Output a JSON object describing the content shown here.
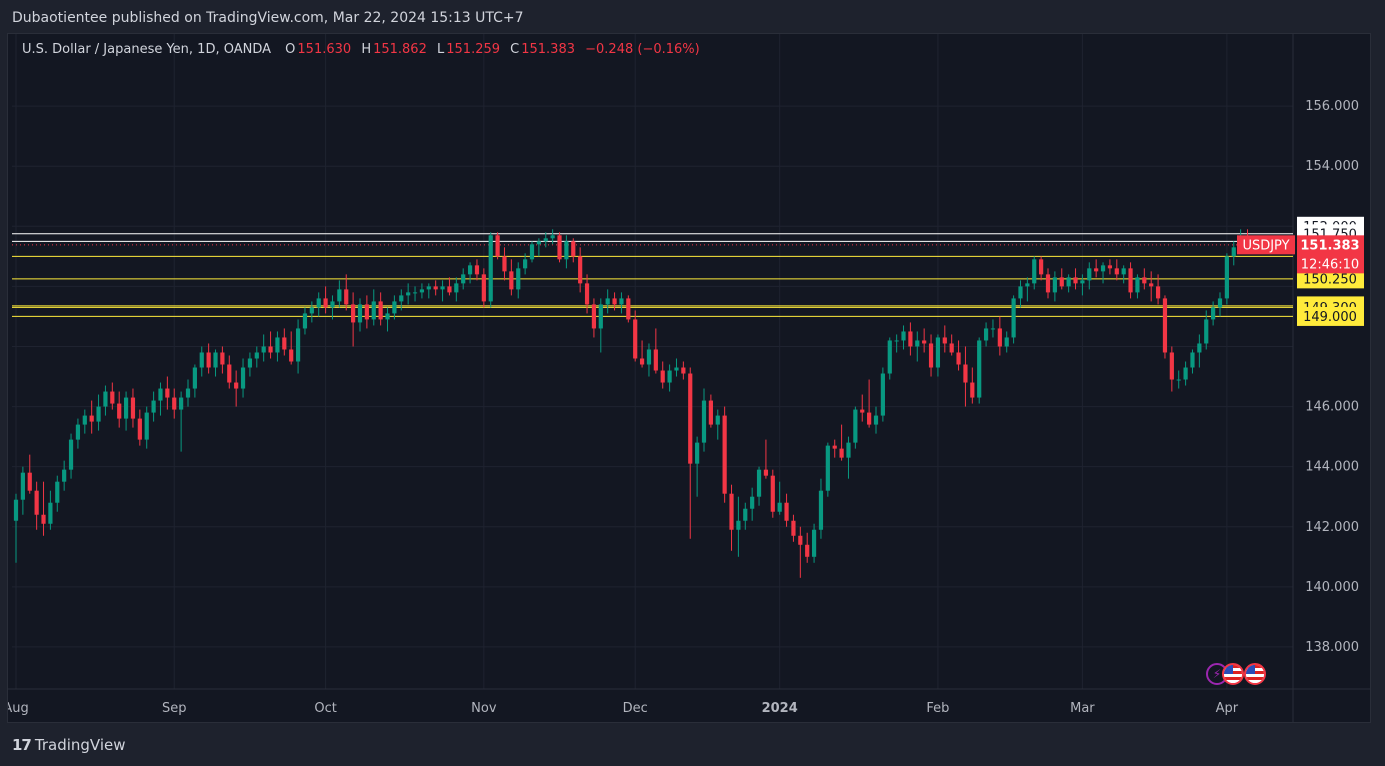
{
  "header": {
    "published_text": "Dubaotientee published on TradingView.com, Mar 22, 2024 15:13 UTC+7"
  },
  "legend": {
    "symbol_name": "U.S. Dollar / Japanese Yen, 1D, OANDA",
    "open_label": "O",
    "open_value": "151.630",
    "high_label": "H",
    "high_value": "151.862",
    "low_label": "L",
    "low_value": "151.259",
    "close_label": "C",
    "close_value": "151.383",
    "change_text": "−0.248 (−0.16%)"
  },
  "footer": {
    "brand": "TradingView"
  },
  "colors": {
    "background": "#131722",
    "up": "#089981",
    "down": "#f23645",
    "support_line": "#ffeb3b",
    "resistance_line": "#ffffff"
  },
  "icons": [
    "bolt-icon",
    "us-flag-icon",
    "jp-flag-icon",
    "tradingview-logo-icon"
  ],
  "chart_data": {
    "type": "candlestick",
    "symbol_tag": "USDJPY",
    "last_price": "151.383",
    "countdown": "12:46:10",
    "y_ticks": [
      "156.000",
      "154.000",
      "146.000",
      "144.000",
      "142.000",
      "140.000",
      "138.000"
    ],
    "ylim": [
      136.6,
      158.4
    ],
    "x_ticks": [
      {
        "label": "Aug",
        "bar": 0
      },
      {
        "label": "Sep",
        "bar": 23
      },
      {
        "label": "Oct",
        "bar": 45
      },
      {
        "label": "Nov",
        "bar": 68
      },
      {
        "label": "Dec",
        "bar": 90
      },
      {
        "label": "2024",
        "bar": 111,
        "bold": true
      },
      {
        "label": "Feb",
        "bar": 134
      },
      {
        "label": "Mar",
        "bar": 155
      },
      {
        "label": "Apr",
        "bar": 176
      }
    ],
    "horizontal_levels": [
      {
        "price": 152.0,
        "label": "152.000",
        "color": "white",
        "line": false
      },
      {
        "price": 151.75,
        "label": "151.750",
        "color": "white",
        "line": true
      },
      {
        "price": 151.5,
        "label": "",
        "color": "white",
        "line": true
      },
      {
        "price": 151.0,
        "label": "151.000",
        "color": "yellow",
        "line": true
      },
      {
        "price": 150.25,
        "label": "150.250",
        "color": "yellow",
        "line": true
      },
      {
        "price": 149.35,
        "label": "149.350",
        "color": "yellow",
        "line": true
      },
      {
        "price": 149.3,
        "label": "149.300",
        "color": "yellow",
        "line": true
      },
      {
        "price": 149.0,
        "label": "149.000",
        "color": "yellow",
        "line": true
      }
    ],
    "candles": [
      [
        142.2,
        143.1,
        140.8,
        142.9
      ],
      [
        142.9,
        144.0,
        142.4,
        143.8
      ],
      [
        143.8,
        144.4,
        143.1,
        143.2
      ],
      [
        143.2,
        143.5,
        141.9,
        142.4
      ],
      [
        142.4,
        143.5,
        141.7,
        142.1
      ],
      [
        142.1,
        143.2,
        141.9,
        142.8
      ],
      [
        142.8,
        143.7,
        142.5,
        143.5
      ],
      [
        143.5,
        144.2,
        143.2,
        143.9
      ],
      [
        143.9,
        145.1,
        143.6,
        144.9
      ],
      [
        144.9,
        145.6,
        144.6,
        145.4
      ],
      [
        145.4,
        145.9,
        145.1,
        145.7
      ],
      [
        145.7,
        146.2,
        145.1,
        145.5
      ],
      [
        145.5,
        146.4,
        145.2,
        146.0
      ],
      [
        146.0,
        146.7,
        145.7,
        146.5
      ],
      [
        146.5,
        146.8,
        145.9,
        146.1
      ],
      [
        146.1,
        146.5,
        145.3,
        145.6
      ],
      [
        145.6,
        146.5,
        145.2,
        146.3
      ],
      [
        146.3,
        146.6,
        145.3,
        145.6
      ],
      [
        145.6,
        145.9,
        144.7,
        144.9
      ],
      [
        144.9,
        146.0,
        144.6,
        145.8
      ],
      [
        145.8,
        146.5,
        145.5,
        146.2
      ],
      [
        146.2,
        146.8,
        145.7,
        146.6
      ],
      [
        146.6,
        147.0,
        145.9,
        146.3
      ],
      [
        146.3,
        146.6,
        145.6,
        145.9
      ],
      [
        145.9,
        146.5,
        144.5,
        146.3
      ],
      [
        146.3,
        146.9,
        146.0,
        146.6
      ],
      [
        146.6,
        147.4,
        146.3,
        147.3
      ],
      [
        147.3,
        148.0,
        147.0,
        147.8
      ],
      [
        147.8,
        148.1,
        147.1,
        147.3
      ],
      [
        147.3,
        147.9,
        147.0,
        147.8
      ],
      [
        147.8,
        148.0,
        147.1,
        147.4
      ],
      [
        147.4,
        147.7,
        146.6,
        146.8
      ],
      [
        146.8,
        147.2,
        146.0,
        146.6
      ],
      [
        146.6,
        147.6,
        146.3,
        147.3
      ],
      [
        147.3,
        147.8,
        147.0,
        147.6
      ],
      [
        147.6,
        148.0,
        147.3,
        147.8
      ],
      [
        147.8,
        148.4,
        147.5,
        148.0
      ],
      [
        148.0,
        148.5,
        147.6,
        147.8
      ],
      [
        147.8,
        148.5,
        147.5,
        148.3
      ],
      [
        148.3,
        148.6,
        147.7,
        147.9
      ],
      [
        147.9,
        148.5,
        147.4,
        147.5
      ],
      [
        147.5,
        148.9,
        147.1,
        148.6
      ],
      [
        148.6,
        149.3,
        148.4,
        149.1
      ],
      [
        149.1,
        149.5,
        148.8,
        149.3
      ],
      [
        149.3,
        149.8,
        149.0,
        149.6
      ],
      [
        149.6,
        150.0,
        149.1,
        149.3
      ],
      [
        149.3,
        149.7,
        148.9,
        149.5
      ],
      [
        149.5,
        150.2,
        149.3,
        149.9
      ],
      [
        149.9,
        150.4,
        149.2,
        149.4
      ],
      [
        149.4,
        149.8,
        148.0,
        148.8
      ],
      [
        148.8,
        149.6,
        148.5,
        149.4
      ],
      [
        149.4,
        149.7,
        148.6,
        148.9
      ],
      [
        148.9,
        149.9,
        148.7,
        149.5
      ],
      [
        149.5,
        149.8,
        148.7,
        148.9
      ],
      [
        148.9,
        149.3,
        148.5,
        149.1
      ],
      [
        149.1,
        149.7,
        148.9,
        149.5
      ],
      [
        149.5,
        149.9,
        149.2,
        149.7
      ],
      [
        149.7,
        150.1,
        149.4,
        149.8
      ],
      [
        149.8,
        150.0,
        149.5,
        149.8
      ],
      [
        149.8,
        150.1,
        149.6,
        149.9
      ],
      [
        149.9,
        150.1,
        149.6,
        150.0
      ],
      [
        150.0,
        150.2,
        149.7,
        149.9
      ],
      [
        149.9,
        150.2,
        149.5,
        150.0
      ],
      [
        150.0,
        150.3,
        149.7,
        149.8
      ],
      [
        149.8,
        150.3,
        149.5,
        150.1
      ],
      [
        150.1,
        150.6,
        149.9,
        150.4
      ],
      [
        150.4,
        150.8,
        150.1,
        150.7
      ],
      [
        150.7,
        150.9,
        150.2,
        150.4
      ],
      [
        150.4,
        150.6,
        149.3,
        149.5
      ],
      [
        149.5,
        151.8,
        149.3,
        151.7
      ],
      [
        151.7,
        151.8,
        150.9,
        151.0
      ],
      [
        151.0,
        151.3,
        150.2,
        150.5
      ],
      [
        150.5,
        150.9,
        149.7,
        149.9
      ],
      [
        149.9,
        150.8,
        149.6,
        150.6
      ],
      [
        150.6,
        151.1,
        150.4,
        150.9
      ],
      [
        150.9,
        151.5,
        150.8,
        151.4
      ],
      [
        151.4,
        151.6,
        151.0,
        151.5
      ],
      [
        151.5,
        151.8,
        151.3,
        151.6
      ],
      [
        151.6,
        151.9,
        151.4,
        151.7
      ],
      [
        151.7,
        151.8,
        150.8,
        150.9
      ],
      [
        150.9,
        151.7,
        150.6,
        151.5
      ],
      [
        151.5,
        151.6,
        150.8,
        151.0
      ],
      [
        151.0,
        151.3,
        149.8,
        150.1
      ],
      [
        150.1,
        150.4,
        149.1,
        149.4
      ],
      [
        149.4,
        149.6,
        148.3,
        148.6
      ],
      [
        148.6,
        149.6,
        147.8,
        149.4
      ],
      [
        149.4,
        149.9,
        149.1,
        149.6
      ],
      [
        149.6,
        149.8,
        149.2,
        149.4
      ],
      [
        149.4,
        149.8,
        149.1,
        149.6
      ],
      [
        149.6,
        149.7,
        148.8,
        148.9
      ],
      [
        148.9,
        149.2,
        147.5,
        147.6
      ],
      [
        147.6,
        148.2,
        147.3,
        147.4
      ],
      [
        147.4,
        148.1,
        147.0,
        147.9
      ],
      [
        147.9,
        148.6,
        147.1,
        147.2
      ],
      [
        147.2,
        147.5,
        146.6,
        146.8
      ],
      [
        146.8,
        147.4,
        146.5,
        147.2
      ],
      [
        147.2,
        147.6,
        147.0,
        147.3
      ],
      [
        147.3,
        147.5,
        146.9,
        147.1
      ],
      [
        147.1,
        147.3,
        141.6,
        144.1
      ],
      [
        144.1,
        145.0,
        143.0,
        144.8
      ],
      [
        144.8,
        146.6,
        144.5,
        146.2
      ],
      [
        146.2,
        146.4,
        145.3,
        145.4
      ],
      [
        145.4,
        145.9,
        144.9,
        145.7
      ],
      [
        145.7,
        146.0,
        142.8,
        143.1
      ],
      [
        143.1,
        143.4,
        141.2,
        141.9
      ],
      [
        141.9,
        143.0,
        141.0,
        142.2
      ],
      [
        142.2,
        142.8,
        141.9,
        142.6
      ],
      [
        142.6,
        143.3,
        142.2,
        143.0
      ],
      [
        143.0,
        144.0,
        142.7,
        143.9
      ],
      [
        143.9,
        144.9,
        143.6,
        143.7
      ],
      [
        143.7,
        143.9,
        142.3,
        142.5
      ],
      [
        142.5,
        143.5,
        142.4,
        142.8
      ],
      [
        142.8,
        143.1,
        142.0,
        142.2
      ],
      [
        142.2,
        142.4,
        141.5,
        141.7
      ],
      [
        141.7,
        142.0,
        140.3,
        141.4
      ],
      [
        141.4,
        141.8,
        140.8,
        141.0
      ],
      [
        141.0,
        142.1,
        140.8,
        141.9
      ],
      [
        141.9,
        143.6,
        141.6,
        143.2
      ],
      [
        143.2,
        144.8,
        143.0,
        144.7
      ],
      [
        144.7,
        144.9,
        144.3,
        144.6
      ],
      [
        144.6,
        145.4,
        144.2,
        144.3
      ],
      [
        144.3,
        145.0,
        143.6,
        144.8
      ],
      [
        144.8,
        146.0,
        144.6,
        145.9
      ],
      [
        145.9,
        146.4,
        145.5,
        145.8
      ],
      [
        145.8,
        146.9,
        145.3,
        145.4
      ],
      [
        145.4,
        146.0,
        145.1,
        145.7
      ],
      [
        145.7,
        147.3,
        145.5,
        147.1
      ],
      [
        147.1,
        148.3,
        146.9,
        148.2
      ],
      [
        148.2,
        148.4,
        147.8,
        148.2
      ],
      [
        148.2,
        148.7,
        147.9,
        148.5
      ],
      [
        148.5,
        148.8,
        147.7,
        148.0
      ],
      [
        148.0,
        148.5,
        147.5,
        148.2
      ],
      [
        148.2,
        148.6,
        147.8,
        148.1
      ],
      [
        148.1,
        148.4,
        147.0,
        147.3
      ],
      [
        147.3,
        148.4,
        147.0,
        148.3
      ],
      [
        148.3,
        148.7,
        147.8,
        148.1
      ],
      [
        148.1,
        148.4,
        147.7,
        147.8
      ],
      [
        147.8,
        148.2,
        147.2,
        147.4
      ],
      [
        147.4,
        148.0,
        146.0,
        146.8
      ],
      [
        146.8,
        147.3,
        146.1,
        146.3
      ],
      [
        146.3,
        148.3,
        146.1,
        148.2
      ],
      [
        148.2,
        148.8,
        148.0,
        148.6
      ],
      [
        148.6,
        148.9,
        148.3,
        148.6
      ],
      [
        148.6,
        149.0,
        147.7,
        148.0
      ],
      [
        148.0,
        148.5,
        147.8,
        148.3
      ],
      [
        148.3,
        149.7,
        148.1,
        149.6
      ],
      [
        149.6,
        150.2,
        149.3,
        150.0
      ],
      [
        150.0,
        150.3,
        149.5,
        150.1
      ],
      [
        150.1,
        151.0,
        149.9,
        150.9
      ],
      [
        150.9,
        151.0,
        150.2,
        150.4
      ],
      [
        150.4,
        150.6,
        149.6,
        149.8
      ],
      [
        149.8,
        150.5,
        149.5,
        150.3
      ],
      [
        150.3,
        150.6,
        149.9,
        150.0
      ],
      [
        150.0,
        150.4,
        149.8,
        150.3
      ],
      [
        150.3,
        150.6,
        149.9,
        150.1
      ],
      [
        150.1,
        150.4,
        149.7,
        150.2
      ],
      [
        150.2,
        150.8,
        149.9,
        150.6
      ],
      [
        150.6,
        150.9,
        150.3,
        150.5
      ],
      [
        150.5,
        150.8,
        150.1,
        150.7
      ],
      [
        150.7,
        150.9,
        150.4,
        150.6
      ],
      [
        150.6,
        150.9,
        150.2,
        150.4
      ],
      [
        150.4,
        150.7,
        150.1,
        150.6
      ],
      [
        150.6,
        150.8,
        149.6,
        149.8
      ],
      [
        149.8,
        150.4,
        149.6,
        150.3
      ],
      [
        150.3,
        150.6,
        149.9,
        150.1
      ],
      [
        150.1,
        150.5,
        149.5,
        150.0
      ],
      [
        150.0,
        150.4,
        149.4,
        149.6
      ],
      [
        149.6,
        149.7,
        147.6,
        147.8
      ],
      [
        147.8,
        148.0,
        146.5,
        146.9
      ],
      [
        146.9,
        147.2,
        146.6,
        146.9
      ],
      [
        146.9,
        147.5,
        146.7,
        147.3
      ],
      [
        147.3,
        147.9,
        147.1,
        147.8
      ],
      [
        147.8,
        148.4,
        147.3,
        148.1
      ],
      [
        148.1,
        149.2,
        147.9,
        148.9
      ],
      [
        148.9,
        149.5,
        148.7,
        149.3
      ],
      [
        149.3,
        149.8,
        149.0,
        149.6
      ],
      [
        149.6,
        151.1,
        149.4,
        151.0
      ],
      [
        151.0,
        151.5,
        150.7,
        151.3
      ],
      [
        151.3,
        151.9,
        151.2,
        151.6
      ],
      [
        151.6,
        151.9,
        151.3,
        151.4
      ]
    ]
  }
}
